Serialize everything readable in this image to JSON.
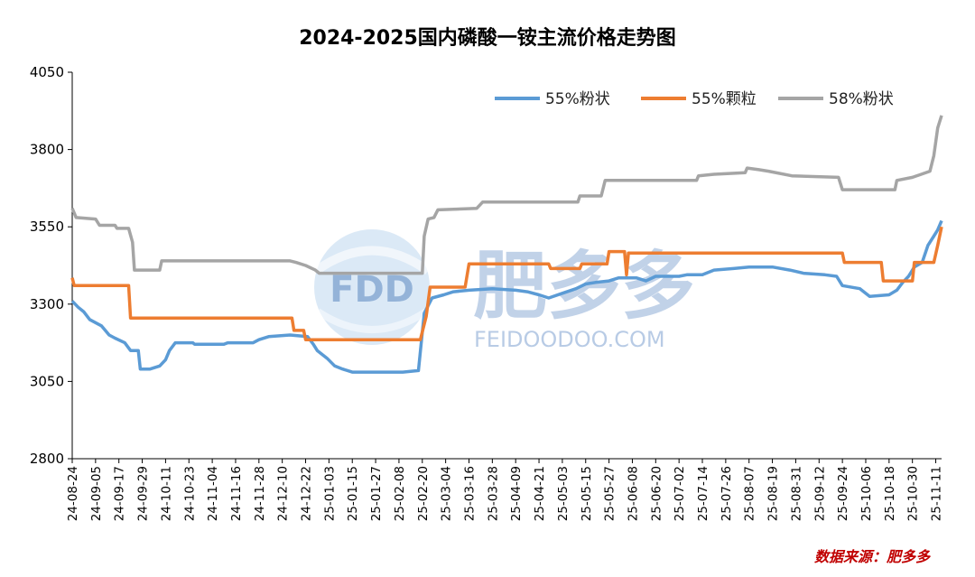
{
  "chart_data": {
    "type": "line",
    "title": "2024-2025国内磷酸一铵主流价格走势图",
    "xlabel": "",
    "ylabel": "",
    "ylim": [
      2800,
      4050
    ],
    "yticks": [
      2800,
      3050,
      3300,
      3550,
      3800,
      4050
    ],
    "x_tick_labels": [
      "24-08-24",
      "24-09-05",
      "24-09-17",
      "24-09-29",
      "24-10-11",
      "24-10-23",
      "24-11-04",
      "24-11-16",
      "24-11-28",
      "24-12-10",
      "24-12-22",
      "25-01-03",
      "25-01-15",
      "25-01-27",
      "25-02-08",
      "25-02-20",
      "25-03-04",
      "25-03-16",
      "25-03-28",
      "25-04-09",
      "25-04-21",
      "25-05-03",
      "25-05-15",
      "25-05-27",
      "25-06-08",
      "25-06-20",
      "25-07-02",
      "25-07-14",
      "25-07-26",
      "25-08-07",
      "25-08-19",
      "25-08-31",
      "25-09-12",
      "25-09-24",
      "25-10-06",
      "25-10-18",
      "25-10-30",
      "25-11-11"
    ],
    "x_start": "2024-08-24",
    "x_end": "2025-11-14",
    "grid": false,
    "legend_position": "top-right",
    "series": [
      {
        "name": "55%粉状",
        "color": "#5b9bd5",
        "points": [
          [
            "2024-08-24",
            3310
          ],
          [
            "2024-08-27",
            3290
          ],
          [
            "2024-08-30",
            3275
          ],
          [
            "2024-09-02",
            3250
          ],
          [
            "2024-09-08",
            3230
          ],
          [
            "2024-09-12",
            3200
          ],
          [
            "2024-09-15",
            3190
          ],
          [
            "2024-09-20",
            3175
          ],
          [
            "2024-09-23",
            3150
          ],
          [
            "2024-09-27",
            3150
          ],
          [
            "2024-09-28",
            3090
          ],
          [
            "2024-10-03",
            3090
          ],
          [
            "2024-10-08",
            3100
          ],
          [
            "2024-10-11",
            3120
          ],
          [
            "2024-10-13",
            3150
          ],
          [
            "2024-10-16",
            3175
          ],
          [
            "2024-10-25",
            3175
          ],
          [
            "2024-10-26",
            3170
          ],
          [
            "2024-11-10",
            3170
          ],
          [
            "2024-11-12",
            3175
          ],
          [
            "2024-11-25",
            3175
          ],
          [
            "2024-11-28",
            3185
          ],
          [
            "2024-12-03",
            3195
          ],
          [
            "2024-12-14",
            3200
          ],
          [
            "2024-12-23",
            3195
          ],
          [
            "2024-12-26",
            3170
          ],
          [
            "2024-12-28",
            3150
          ],
          [
            "2025-01-02",
            3125
          ],
          [
            "2025-01-06",
            3100
          ],
          [
            "2025-01-10",
            3090
          ],
          [
            "2025-01-15",
            3080
          ],
          [
            "2025-02-10",
            3080
          ],
          [
            "2025-02-18",
            3085
          ],
          [
            "2025-02-21",
            3270
          ],
          [
            "2025-02-25",
            3320
          ],
          [
            "2025-03-03",
            3330
          ],
          [
            "2025-03-08",
            3340
          ],
          [
            "2025-03-16",
            3345
          ],
          [
            "2025-03-28",
            3350
          ],
          [
            "2025-04-09",
            3345
          ],
          [
            "2025-04-15",
            3340
          ],
          [
            "2025-04-21",
            3330
          ],
          [
            "2025-04-26",
            3320
          ],
          [
            "2025-05-03",
            3335
          ],
          [
            "2025-05-10",
            3350
          ],
          [
            "2025-05-15",
            3365
          ],
          [
            "2025-05-20",
            3370
          ],
          [
            "2025-05-27",
            3375
          ],
          [
            "2025-06-01",
            3385
          ],
          [
            "2025-06-10",
            3385
          ],
          [
            "2025-06-15",
            3375
          ],
          [
            "2025-06-20",
            3390
          ],
          [
            "2025-07-02",
            3390
          ],
          [
            "2025-07-06",
            3395
          ],
          [
            "2025-07-14",
            3395
          ],
          [
            "2025-07-20",
            3410
          ],
          [
            "2025-07-30",
            3415
          ],
          [
            "2025-08-07",
            3420
          ],
          [
            "2025-08-19",
            3420
          ],
          [
            "2025-08-28",
            3410
          ],
          [
            "2025-09-04",
            3400
          ],
          [
            "2025-09-15",
            3395
          ],
          [
            "2025-09-21",
            3390
          ],
          [
            "2025-09-24",
            3360
          ],
          [
            "2025-10-03",
            3350
          ],
          [
            "2025-10-08",
            3325
          ],
          [
            "2025-10-18",
            3330
          ],
          [
            "2025-10-22",
            3345
          ],
          [
            "2025-10-25",
            3370
          ],
          [
            "2025-10-28",
            3390
          ],
          [
            "2025-10-31",
            3420
          ],
          [
            "2025-11-04",
            3435
          ],
          [
            "2025-11-07",
            3490
          ],
          [
            "2025-11-10",
            3520
          ],
          [
            "2025-11-12",
            3540
          ],
          [
            "2025-11-14",
            3570
          ]
        ]
      },
      {
        "name": "55%颗粒",
        "color": "#ed7d31",
        "points": [
          [
            "2024-08-24",
            3385
          ],
          [
            "2024-08-25",
            3360
          ],
          [
            "2024-09-22",
            3360
          ],
          [
            "2024-09-23",
            3255
          ],
          [
            "2024-12-15",
            3255
          ],
          [
            "2024-12-16",
            3215
          ],
          [
            "2024-12-21",
            3215
          ],
          [
            "2024-12-22",
            3185
          ],
          [
            "2025-02-19",
            3185
          ],
          [
            "2025-02-22",
            3260
          ],
          [
            "2025-02-24",
            3355
          ],
          [
            "2025-03-14",
            3355
          ],
          [
            "2025-03-16",
            3430
          ],
          [
            "2025-04-26",
            3430
          ],
          [
            "2025-04-27",
            3415
          ],
          [
            "2025-05-12",
            3415
          ],
          [
            "2025-05-13",
            3430
          ],
          [
            "2025-05-26",
            3430
          ],
          [
            "2025-05-27",
            3470
          ],
          [
            "2025-06-04",
            3470
          ],
          [
            "2025-06-05",
            3395
          ],
          [
            "2025-06-06",
            3465
          ],
          [
            "2025-09-24",
            3465
          ],
          [
            "2025-09-25",
            3435
          ],
          [
            "2025-10-14",
            3435
          ],
          [
            "2025-10-15",
            3375
          ],
          [
            "2025-10-30",
            3375
          ],
          [
            "2025-10-31",
            3435
          ],
          [
            "2025-11-10",
            3435
          ],
          [
            "2025-11-12",
            3490
          ],
          [
            "2025-11-14",
            3550
          ]
        ]
      },
      {
        "name": "58%粉状",
        "color": "#a5a5a5",
        "points": [
          [
            "2024-08-24",
            3610
          ],
          [
            "2024-08-26",
            3580
          ],
          [
            "2024-09-05",
            3575
          ],
          [
            "2024-09-07",
            3555
          ],
          [
            "2024-09-15",
            3555
          ],
          [
            "2024-09-16",
            3545
          ],
          [
            "2024-09-22",
            3545
          ],
          [
            "2024-09-24",
            3500
          ],
          [
            "2024-09-25",
            3410
          ],
          [
            "2024-10-08",
            3410
          ],
          [
            "2024-10-09",
            3440
          ],
          [
            "2024-12-14",
            3440
          ],
          [
            "2024-12-17",
            3435
          ],
          [
            "2024-12-22",
            3425
          ],
          [
            "2024-12-27",
            3410
          ],
          [
            "2024-12-29",
            3400
          ],
          [
            "2025-02-20",
            3400
          ],
          [
            "2025-02-21",
            3520
          ],
          [
            "2025-02-23",
            3575
          ],
          [
            "2025-02-26",
            3580
          ],
          [
            "2025-02-28",
            3605
          ],
          [
            "2025-03-20",
            3610
          ],
          [
            "2025-03-23",
            3630
          ],
          [
            "2025-05-11",
            3630
          ],
          [
            "2025-05-12",
            3650
          ],
          [
            "2025-05-23",
            3650
          ],
          [
            "2025-05-25",
            3700
          ],
          [
            "2025-07-11",
            3700
          ],
          [
            "2025-07-12",
            3715
          ],
          [
            "2025-07-20",
            3720
          ],
          [
            "2025-08-05",
            3725
          ],
          [
            "2025-08-06",
            3740
          ],
          [
            "2025-08-12",
            3735
          ],
          [
            "2025-08-17",
            3730
          ],
          [
            "2025-08-29",
            3715
          ],
          [
            "2025-09-22",
            3710
          ],
          [
            "2025-09-24",
            3670
          ],
          [
            "2025-10-21",
            3670
          ],
          [
            "2025-10-22",
            3700
          ],
          [
            "2025-10-30",
            3710
          ],
          [
            "2025-11-08",
            3730
          ],
          [
            "2025-11-10",
            3780
          ],
          [
            "2025-11-12",
            3870
          ],
          [
            "2025-11-14",
            3910
          ]
        ]
      }
    ]
  },
  "watermark": {
    "logo_text": "FDD",
    "brand_text": "肥多多",
    "url_text": "FEIDOODOO.COM"
  },
  "source_text": "数据来源：肥多多"
}
